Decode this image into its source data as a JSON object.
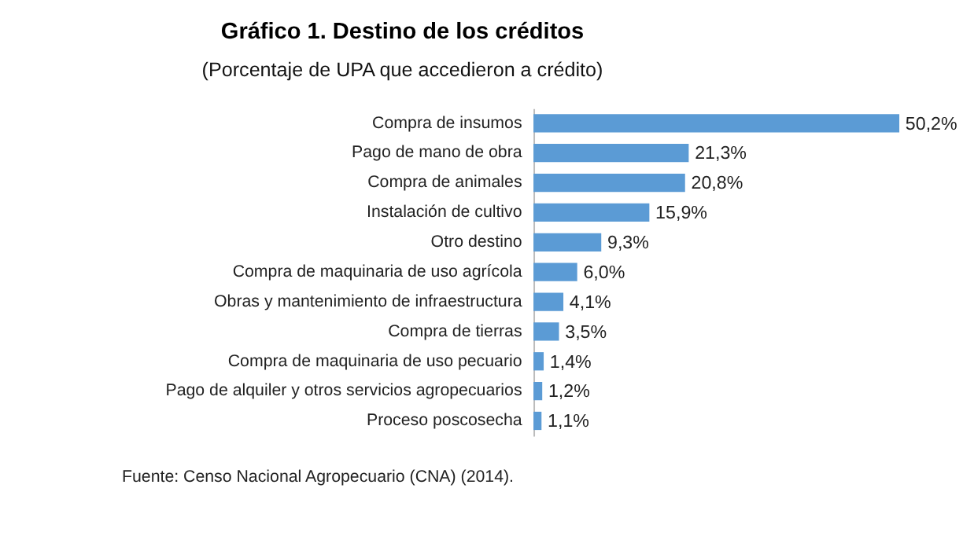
{
  "chart_data": {
    "type": "bar",
    "orientation": "horizontal",
    "title": "Gráfico 1. Destino de los créditos",
    "subtitle": "(Porcentaje de UPA que accedieron a crédito)",
    "categories": [
      "Compra de insumos",
      "Pago de mano de obra",
      "Compra de animales",
      "Instalación de cultivo",
      "Otro destino",
      "Compra de maquinaria de uso agrícola",
      "Obras y mantenimiento de infraestructura",
      "Compra de tierras",
      "Compra de maquinaria de uso pecuario",
      "Pago de alquiler y otros servicios agropecuarios",
      "Proceso poscosecha"
    ],
    "values": [
      50.2,
      21.3,
      20.8,
      15.9,
      9.3,
      6.0,
      4.1,
      3.5,
      1.4,
      1.2,
      1.1
    ],
    "value_labels": [
      "50,2%",
      "21,3%",
      "20,8%",
      "15,9%",
      "9,3%",
      "6,0%",
      "4,1%",
      "3,5%",
      "1,4%",
      "1,2%",
      "1,1%"
    ],
    "color": "#5b9bd5",
    "tick_labels": "y",
    "annotations": [
      "Fuente: Censo Nacional Agropecuario (CNA) (2014)."
    ]
  }
}
